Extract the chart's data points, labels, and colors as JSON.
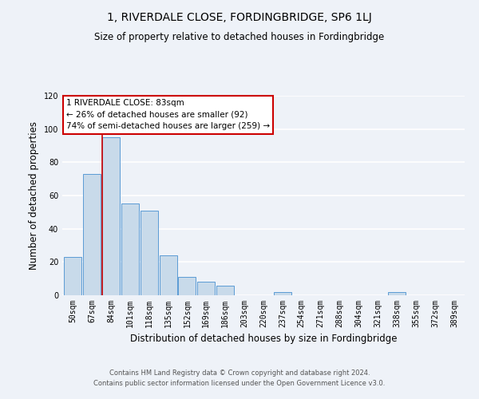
{
  "title": "1, RIVERDALE CLOSE, FORDINGBRIDGE, SP6 1LJ",
  "subtitle": "Size of property relative to detached houses in Fordingbridge",
  "bar_labels": [
    "50sqm",
    "67sqm",
    "84sqm",
    "101sqm",
    "118sqm",
    "135sqm",
    "152sqm",
    "169sqm",
    "186sqm",
    "203sqm",
    "220sqm",
    "237sqm",
    "254sqm",
    "271sqm",
    "288sqm",
    "304sqm",
    "321sqm",
    "338sqm",
    "355sqm",
    "372sqm",
    "389sqm"
  ],
  "bar_values": [
    23,
    73,
    95,
    55,
    51,
    24,
    11,
    8,
    6,
    0,
    0,
    2,
    0,
    0,
    0,
    0,
    0,
    2,
    0,
    0,
    0
  ],
  "bar_color": "#c8daea",
  "bar_edge_color": "#5b9bd5",
  "highlight_index": 2,
  "highlight_line_color": "#cc0000",
  "ylabel": "Number of detached properties",
  "xlabel": "Distribution of detached houses by size in Fordingbridge",
  "ylim": [
    0,
    120
  ],
  "yticks": [
    0,
    20,
    40,
    60,
    80,
    100,
    120
  ],
  "annotation_title": "1 RIVERDALE CLOSE: 83sqm",
  "annotation_line1": "← 26% of detached houses are smaller (92)",
  "annotation_line2": "74% of semi-detached houses are larger (259) →",
  "annotation_box_color": "#ffffff",
  "annotation_box_edge": "#cc0000",
  "footer_line1": "Contains HM Land Registry data © Crown copyright and database right 2024.",
  "footer_line2": "Contains public sector information licensed under the Open Government Licence v3.0.",
  "background_color": "#eef2f8",
  "grid_color": "#ffffff",
  "title_fontsize": 10,
  "subtitle_fontsize": 8.5,
  "axis_label_fontsize": 8.5,
  "tick_fontsize": 7,
  "annotation_fontsize": 7.5,
  "footer_fontsize": 6
}
